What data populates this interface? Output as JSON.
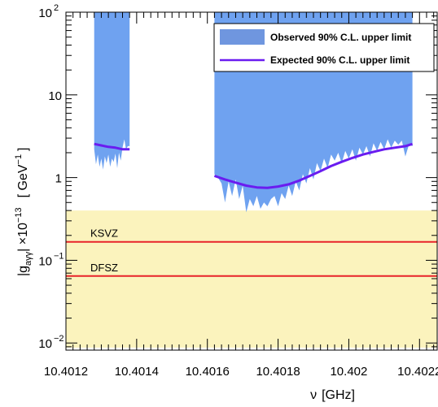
{
  "chart_data": {
    "type": "line",
    "x_axis": {
      "title_symbol": "ν",
      "title_unit": "[GHz]",
      "range": [
        10.4012,
        10.40225
      ],
      "tick_labels": [
        "10.4012",
        "10.4014",
        "10.4016",
        "10.4018",
        "10.402",
        "10.4022"
      ],
      "tick_values": [
        10.4012,
        10.4014,
        10.4016,
        10.4018,
        10.402,
        10.4022
      ]
    },
    "y_axis": {
      "title_main": "|g",
      "title_sub": "aγγ",
      "title_mid": "| ×10",
      "title_exp": "−13",
      "title_unit": "[ GeV",
      "title_unit_exp": "−1",
      "title_unit_close": "]",
      "scale": "log",
      "range": [
        0.0082,
        100
      ],
      "tick_labels": [
        {
          "base": "10",
          "exp": "−2",
          "value": 0.01
        },
        {
          "base": "10",
          "exp": "−1",
          "value": 0.1
        },
        {
          "base": "1",
          "exp": "",
          "value": 1
        },
        {
          "base": "10",
          "exp": "",
          "value": 10
        },
        {
          "base": "10",
          "exp": "2",
          "value": 100
        }
      ]
    },
    "legend": {
      "placement": "top-right",
      "entries": [
        {
          "label": "Observed 90% C.L. upper limit",
          "kind": "fill",
          "color": "#6f96df"
        },
        {
          "label": "Expected 90% C.L. upper limit",
          "kind": "line",
          "color": "#6a1cf0"
        }
      ]
    },
    "band": {
      "y_min": 0.0088,
      "y_max": 0.4,
      "color": "#fbf3bd"
    },
    "models": [
      {
        "label": "KSVZ",
        "value": 0.167,
        "color": "#e8232a"
      },
      {
        "label": "DFSZ",
        "value": 0.0645,
        "color": "#e8232a"
      }
    ],
    "series": [
      {
        "name": "Observed 90% C.L. upper limit",
        "type": "area",
        "color": "#6fa2f0",
        "segments": [
          {
            "x_range": [
              10.40128,
              10.40138
            ],
            "lower_envelope": [
              [
                10.40128,
                2.2
              ],
              [
                10.401285,
                1.45
              ],
              [
                10.40129,
                1.9
              ],
              [
                10.401295,
                1.35
              ],
              [
                10.4013,
                1.7
              ],
              [
                10.401305,
                1.25
              ],
              [
                10.40131,
                1.8
              ],
              [
                10.401315,
                1.5
              ],
              [
                10.40132,
                1.9
              ],
              [
                10.401325,
                1.35
              ],
              [
                10.40133,
                1.7
              ],
              [
                10.401335,
                1.55
              ],
              [
                10.40134,
                1.95
              ],
              [
                10.401345,
                1.3
              ],
              [
                10.40135,
                2.0
              ],
              [
                10.401355,
                1.6
              ],
              [
                10.40136,
                2.3
              ],
              [
                10.401365,
                2.9
              ],
              [
                10.40137,
                2.2
              ],
              [
                10.401375,
                2.4
              ],
              [
                10.40138,
                2.4
              ]
            ]
          },
          {
            "x_range": [
              10.40162,
              10.40218
            ],
            "lower_envelope": [
              [
                10.40162,
                1.1
              ],
              [
                10.40163,
                1.0
              ],
              [
                10.40164,
                0.85
              ],
              [
                10.40165,
                0.5
              ],
              [
                10.40166,
                0.9
              ],
              [
                10.40167,
                0.6
              ],
              [
                10.40168,
                0.95
              ],
              [
                10.40169,
                0.55
              ],
              [
                10.4017,
                0.8
              ],
              [
                10.40171,
                0.38
              ],
              [
                10.40172,
                0.55
              ],
              [
                10.40173,
                0.45
              ],
              [
                10.40174,
                0.6
              ],
              [
                10.40175,
                0.42
              ],
              [
                10.40176,
                0.5
              ],
              [
                10.40177,
                0.45
              ],
              [
                10.40178,
                0.55
              ],
              [
                10.40179,
                0.6
              ],
              [
                10.4018,
                0.45
              ],
              [
                10.40181,
                0.65
              ],
              [
                10.40182,
                0.55
              ],
              [
                10.40183,
                0.8
              ],
              [
                10.40184,
                0.6
              ],
              [
                10.40185,
                0.9
              ],
              [
                10.40186,
                0.7
              ],
              [
                10.40187,
                1.1
              ],
              [
                10.40188,
                0.85
              ],
              [
                10.40189,
                1.3
              ],
              [
                10.4019,
                0.95
              ],
              [
                10.40191,
                1.5
              ],
              [
                10.40192,
                1.2
              ],
              [
                10.40193,
                1.7
              ],
              [
                10.40194,
                1.3
              ],
              [
                10.40195,
                1.9
              ],
              [
                10.40196,
                1.6
              ],
              [
                10.40197,
                2.0
              ],
              [
                10.40198,
                1.5
              ],
              [
                10.40199,
                2.1
              ],
              [
                10.402,
                1.7
              ],
              [
                10.40201,
                2.2
              ],
              [
                10.40202,
                1.6
              ],
              [
                10.40203,
                2.3
              ],
              [
                10.40204,
                1.9
              ],
              [
                10.40205,
                2.4
              ],
              [
                10.40206,
                1.8
              ],
              [
                10.40207,
                2.6
              ],
              [
                10.40208,
                2.1
              ],
              [
                10.40209,
                2.7
              ],
              [
                10.4021,
                2.2
              ],
              [
                10.40211,
                2.9
              ],
              [
                10.40212,
                2.3
              ],
              [
                10.40213,
                2.8
              ],
              [
                10.40214,
                2.5
              ],
              [
                10.40215,
                2.8
              ],
              [
                10.40216,
                1.8
              ],
              [
                10.40217,
                2.5
              ],
              [
                10.40218,
                2.4
              ]
            ]
          }
        ]
      },
      {
        "name": "Expected 90% C.L. upper limit",
        "type": "line",
        "color": "#6a1cf0",
        "segments": [
          [
            [
              10.40128,
              2.55
            ],
            [
              10.4013,
              2.45
            ],
            [
              10.40132,
              2.35
            ],
            [
              10.40134,
              2.3
            ],
            [
              10.40136,
              2.2
            ],
            [
              10.40138,
              2.2
            ]
          ],
          [
            [
              10.40162,
              1.05
            ],
            [
              10.40165,
              0.95
            ],
            [
              10.40168,
              0.87
            ],
            [
              10.40171,
              0.8
            ],
            [
              10.40174,
              0.76
            ],
            [
              10.40177,
              0.75
            ],
            [
              10.4018,
              0.78
            ],
            [
              10.40183,
              0.83
            ],
            [
              10.40186,
              0.92
            ],
            [
              10.40189,
              1.05
            ],
            [
              10.40192,
              1.2
            ],
            [
              10.40195,
              1.38
            ],
            [
              10.40198,
              1.55
            ],
            [
              10.40201,
              1.73
            ],
            [
              10.40204,
              1.9
            ],
            [
              10.40207,
              2.05
            ],
            [
              10.4021,
              2.2
            ],
            [
              10.40213,
              2.3
            ],
            [
              10.40216,
              2.4
            ],
            [
              10.40218,
              2.55
            ]
          ]
        ]
      }
    ]
  }
}
